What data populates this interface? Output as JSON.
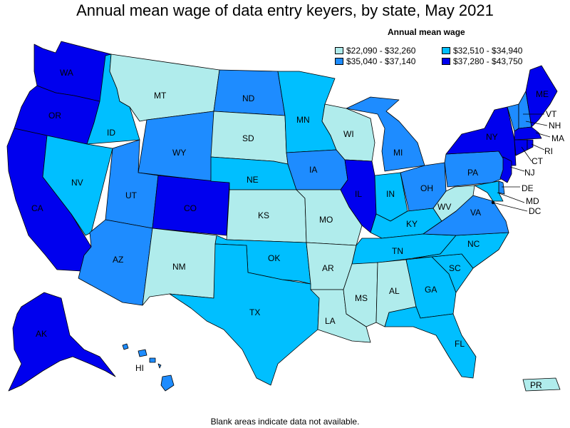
{
  "title": "Annual mean wage of data entry keyers, by state, May 2021",
  "legend": {
    "title": "Annual mean wage",
    "items": [
      {
        "label": "$22,090 - $32,260",
        "color": "#b0ecec"
      },
      {
        "label": "$32,510 - $34,940",
        "color": "#00bfff"
      },
      {
        "label": "$35,040 - $37,140",
        "color": "#1e8cff"
      },
      {
        "label": "$37,280 - $43,750",
        "color": "#0000ee"
      }
    ]
  },
  "footnote": "Blank areas indicate data not available.",
  "states": {
    "WA": {
      "label": "WA",
      "tier": 3
    },
    "OR": {
      "label": "OR",
      "tier": 3
    },
    "CA": {
      "label": "CA",
      "tier": 3
    },
    "ID": {
      "label": "ID",
      "tier": 1
    },
    "NV": {
      "label": "NV",
      "tier": 1
    },
    "MT": {
      "label": "MT",
      "tier": 0
    },
    "WY": {
      "label": "WY",
      "tier": 2
    },
    "UT": {
      "label": "UT",
      "tier": 2
    },
    "AZ": {
      "label": "AZ",
      "tier": 2
    },
    "CO": {
      "label": "CO",
      "tier": 3
    },
    "NM": {
      "label": "NM",
      "tier": 0
    },
    "ND": {
      "label": "ND",
      "tier": 2
    },
    "SD": {
      "label": "SD",
      "tier": 0
    },
    "NE": {
      "label": "NE",
      "tier": 1
    },
    "KS": {
      "label": "KS",
      "tier": 0
    },
    "OK": {
      "label": "OK",
      "tier": 1
    },
    "TX": {
      "label": "TX",
      "tier": 1
    },
    "MN": {
      "label": "MN",
      "tier": 1
    },
    "IA": {
      "label": "IA",
      "tier": 2
    },
    "MO": {
      "label": "MO",
      "tier": 0
    },
    "AR": {
      "label": "AR",
      "tier": 0
    },
    "LA": {
      "label": "LA",
      "tier": 0
    },
    "WI": {
      "label": "WI",
      "tier": 0
    },
    "IL": {
      "label": "IL",
      "tier": 3
    },
    "MI": {
      "label": "MI",
      "tier": 2
    },
    "IN": {
      "label": "IN",
      "tier": 1
    },
    "OH": {
      "label": "OH",
      "tier": 2
    },
    "KY": {
      "label": "KY",
      "tier": 1
    },
    "TN": {
      "label": "TN",
      "tier": 1
    },
    "MS": {
      "label": "MS",
      "tier": 0
    },
    "AL": {
      "label": "AL",
      "tier": 0
    },
    "GA": {
      "label": "GA",
      "tier": 1
    },
    "FL": {
      "label": "FL",
      "tier": 1
    },
    "SC": {
      "label": "SC",
      "tier": 1
    },
    "NC": {
      "label": "NC",
      "tier": 1
    },
    "VA": {
      "label": "VA",
      "tier": 2
    },
    "WV": {
      "label": "WV",
      "tier": 0
    },
    "PA": {
      "label": "PA",
      "tier": 2
    },
    "NY": {
      "label": "NY",
      "tier": 3
    },
    "ME": {
      "label": "ME",
      "tier": 3
    },
    "VT": {
      "label": "VT",
      "tier": 2
    },
    "NH": {
      "label": "NH",
      "tier": 2
    },
    "MA": {
      "label": "MA",
      "tier": 3
    },
    "RI": {
      "label": "RI",
      "tier": 3
    },
    "CT": {
      "label": "CT",
      "tier": 3
    },
    "NJ": {
      "label": "NJ",
      "tier": 3
    },
    "DE": {
      "label": "DE",
      "tier": 2
    },
    "MD": {
      "label": "MD",
      "tier": 1
    },
    "DC": {
      "label": "DC",
      "tier": 3
    },
    "AK": {
      "label": "AK",
      "tier": 3
    },
    "HI": {
      "label": "HI",
      "tier": 2
    },
    "PR": {
      "label": "PR",
      "tier": 0
    }
  }
}
